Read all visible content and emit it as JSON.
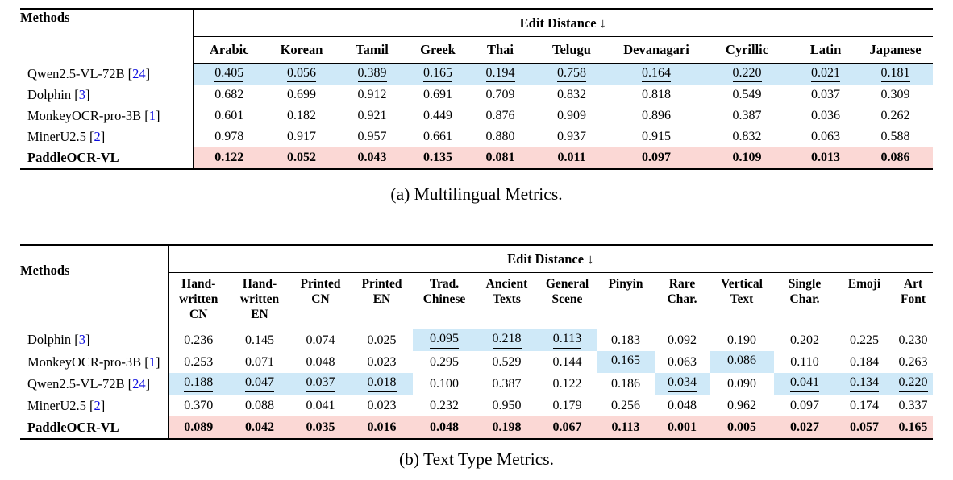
{
  "colors": {
    "second_best_highlight_blue": "#CFE9F8",
    "best_highlight_pink": "#FBD8D5",
    "citation_link_blue": "#0B0BE0",
    "rule_black": "#000000"
  },
  "tables": [
    {
      "key": "a",
      "caption": "(a) Multilingual Metrics.",
      "methods_header": "Methods",
      "group_header": "Edit Distance ↓",
      "columns": [
        "Arabic",
        "Korean",
        "Tamil",
        "Greek",
        "Thai",
        "Telugu",
        "Devanagari",
        "Cyrillic",
        "Latin",
        "Japanese"
      ],
      "rows": [
        {
          "method": "Qwen2.5-VL-72B",
          "ref": "24",
          "values": [
            "0.405",
            "0.056",
            "0.389",
            "0.165",
            "0.194",
            "0.758",
            "0.164",
            "0.220",
            "0.021",
            "0.181"
          ],
          "blue_cells": [
            0,
            1,
            2,
            3,
            4,
            5,
            6,
            7,
            8,
            9
          ],
          "underline_cells": [
            0,
            1,
            2,
            3,
            4,
            5,
            6,
            7,
            8,
            9
          ]
        },
        {
          "method": "Dolphin",
          "ref": "3",
          "values": [
            "0.682",
            "0.699",
            "0.912",
            "0.691",
            "0.709",
            "0.832",
            "0.818",
            "0.549",
            "0.037",
            "0.309"
          ]
        },
        {
          "method": "MonkeyOCR-pro-3B",
          "ref": "1",
          "values": [
            "0.601",
            "0.182",
            "0.921",
            "0.449",
            "0.876",
            "0.909",
            "0.896",
            "0.387",
            "0.036",
            "0.262"
          ]
        },
        {
          "method": "MinerU2.5",
          "ref": "2",
          "values": [
            "0.978",
            "0.917",
            "0.957",
            "0.661",
            "0.880",
            "0.937",
            "0.915",
            "0.832",
            "0.063",
            "0.588"
          ]
        },
        {
          "method": "PaddleOCR-VL",
          "bold": true,
          "pink": true,
          "values": [
            "0.122",
            "0.052",
            "0.043",
            "0.135",
            "0.081",
            "0.011",
            "0.097",
            "0.109",
            "0.013",
            "0.086"
          ]
        }
      ]
    },
    {
      "key": "b",
      "caption": "(b) Text Type Metrics.",
      "methods_header": "Methods",
      "group_header": "Edit Distance ↓",
      "columns": [
        "Hand-\nwritten\nCN",
        "Hand-\nwritten\nEN",
        "Printed\nCN",
        "Printed\nEN",
        "Trad.\nChinese",
        "Ancient\nTexts",
        "General\nScene",
        "Pinyin",
        "Rare\nChar.",
        "Vertical\nText",
        "Single\nChar.",
        "Emoji",
        "Art\nFont"
      ],
      "rows": [
        {
          "method": "Dolphin",
          "ref": "3",
          "values": [
            "0.236",
            "0.145",
            "0.074",
            "0.025",
            "0.095",
            "0.218",
            "0.113",
            "0.183",
            "0.092",
            "0.190",
            "0.202",
            "0.225",
            "0.230"
          ],
          "blue_cells": [
            4,
            5,
            6
          ],
          "underline_cells": [
            4,
            5,
            6
          ]
        },
        {
          "method": "MonkeyOCR-pro-3B",
          "ref": "1",
          "values": [
            "0.253",
            "0.071",
            "0.048",
            "0.023",
            "0.295",
            "0.529",
            "0.144",
            "0.165",
            "0.063",
            "0.086",
            "0.110",
            "0.184",
            "0.263"
          ],
          "blue_cells": [
            7,
            9
          ],
          "underline_cells": [
            7,
            9
          ]
        },
        {
          "method": "Qwen2.5-VL-72B",
          "ref": "24",
          "values": [
            "0.188",
            "0.047",
            "0.037",
            "0.018",
            "0.100",
            "0.387",
            "0.122",
            "0.186",
            "0.034",
            "0.090",
            "0.041",
            "0.134",
            "0.220"
          ],
          "blue_cells": [
            0,
            1,
            2,
            3,
            8,
            10,
            11,
            12
          ],
          "underline_cells": [
            0,
            1,
            2,
            3,
            8,
            10,
            11,
            12
          ]
        },
        {
          "method": "MinerU2.5",
          "ref": "2",
          "values": [
            "0.370",
            "0.088",
            "0.041",
            "0.023",
            "0.232",
            "0.950",
            "0.179",
            "0.256",
            "0.048",
            "0.962",
            "0.097",
            "0.174",
            "0.337"
          ]
        },
        {
          "method": "PaddleOCR-VL",
          "bold": true,
          "pink": true,
          "values": [
            "0.089",
            "0.042",
            "0.035",
            "0.016",
            "0.048",
            "0.198",
            "0.067",
            "0.113",
            "0.001",
            "0.005",
            "0.027",
            "0.057",
            "0.165"
          ]
        }
      ]
    }
  ]
}
